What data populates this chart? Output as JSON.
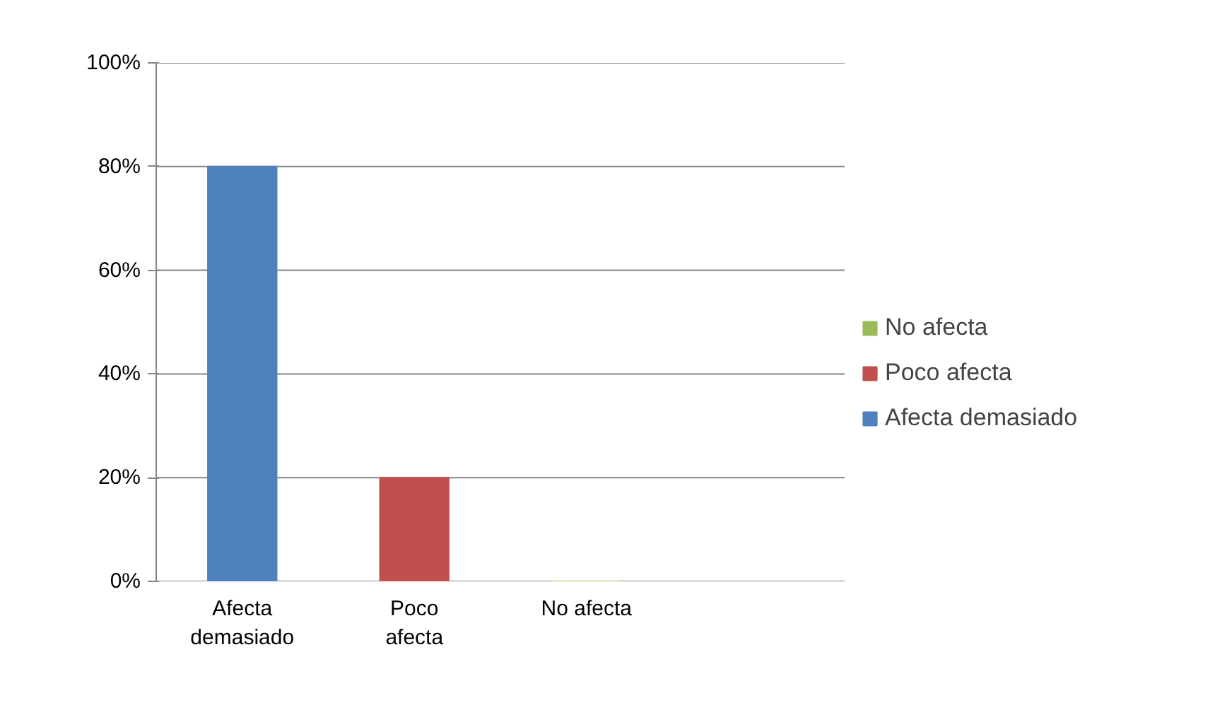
{
  "chart_data": {
    "type": "bar",
    "categories": [
      "Afecta demasiado",
      "Poco afecta",
      "No afecta",
      null
    ],
    "series": [
      {
        "name": "No afecta",
        "color": "#9bbb59",
        "values": [
          null,
          null,
          0,
          null
        ]
      },
      {
        "name": "Poco afecta",
        "color": "#c0504d",
        "values": [
          null,
          20,
          null,
          null
        ]
      },
      {
        "name": "Afecta demasiado",
        "color": "#4f81bd",
        "values": [
          80,
          null,
          null,
          null
        ]
      }
    ],
    "ylim": [
      0,
      100
    ],
    "yticks": [
      {
        "value": 0,
        "label": "0%"
      },
      {
        "value": 20,
        "label": "20%"
      },
      {
        "value": 40,
        "label": "40%"
      },
      {
        "value": 60,
        "label": "60%"
      },
      {
        "value": 80,
        "label": "80%"
      },
      {
        "value": 100,
        "label": "100%"
      }
    ],
    "grid": "y",
    "legend": "right"
  }
}
